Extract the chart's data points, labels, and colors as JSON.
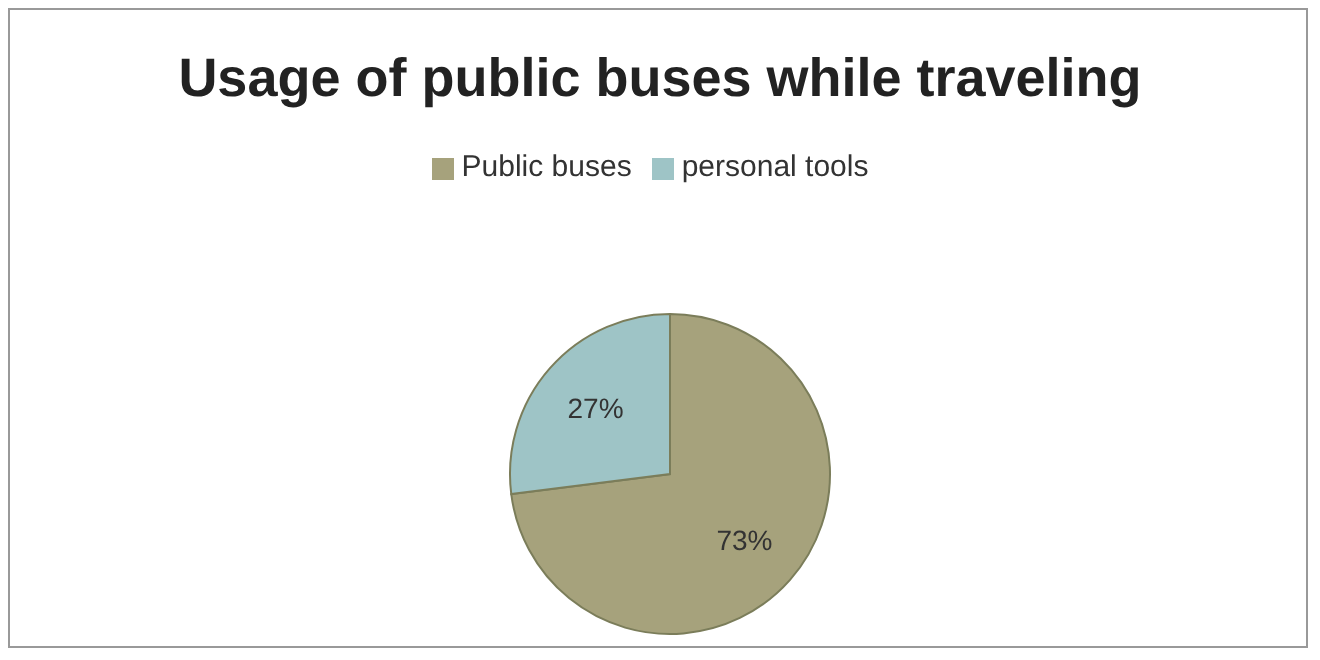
{
  "chart_data": {
    "type": "pie",
    "title": "Usage of public buses while traveling",
    "categories": [
      "Public buses",
      "personal tools"
    ],
    "values": [
      73,
      27
    ],
    "value_labels": [
      "73%",
      "27%"
    ],
    "colors": [
      "#a6a27c",
      "#9ec4c6"
    ],
    "legend": "top"
  }
}
